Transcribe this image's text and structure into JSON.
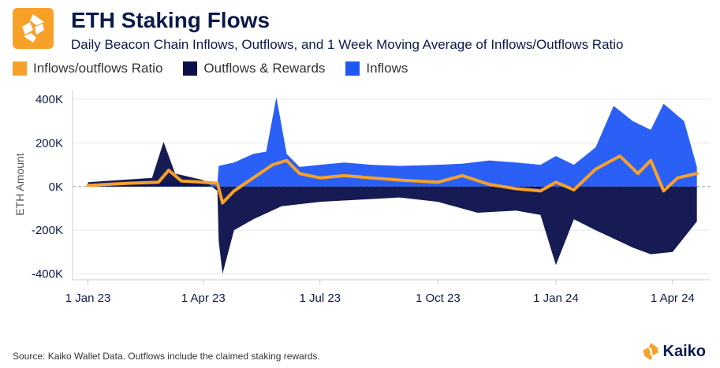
{
  "header": {
    "title": "ETH Staking Flows",
    "subtitle": "Daily Beacon Chain Inflows, Outflows, and 1 Week Moving Average of Inflows/Outflows Ratio"
  },
  "legend": [
    {
      "label": "Inflows/outflows Ratio",
      "color": "#f7a129"
    },
    {
      "label": "Outflows & Rewards",
      "color": "#0b0f4a"
    },
    {
      "label": "Inflows",
      "color": "#1f57f5"
    }
  ],
  "footer": {
    "source": "Source: Kaiko Wallet Data. Outflows include the claimed staking rewards.",
    "brand": "Kaiko"
  },
  "chart_data": {
    "type": "area",
    "title": "ETH Staking Flows",
    "ylabel": "ETH Amount",
    "xlabel": "",
    "ylim": [
      -420000,
      440000
    ],
    "xlim": [
      "2022-12-20",
      "2024-04-30"
    ],
    "y_ticks": [
      "400K",
      "200K",
      "0K",
      "-200K",
      "-400K"
    ],
    "y_tick_values": [
      400000,
      200000,
      0,
      -200000,
      -400000
    ],
    "x_ticks": [
      "1 Jan 23",
      "1 Apr 23",
      "1 Jul 23",
      "1 Oct 23",
      "1 Jan 24",
      "1 Apr 24"
    ],
    "x_tick_dates": [
      "2023-01-01",
      "2023-04-01",
      "2023-07-01",
      "2023-10-01",
      "2024-01-01",
      "2024-04-01"
    ],
    "grid": true,
    "legend_position": "top-left",
    "series": [
      {
        "name": "Inflows",
        "color": "#1f57f5",
        "points": [
          [
            "2023-01-01",
            5000
          ],
          [
            "2023-02-01",
            15000
          ],
          [
            "2023-03-01",
            22000
          ],
          [
            "2023-04-01",
            20000
          ],
          [
            "2023-04-12",
            15000
          ],
          [
            "2023-04-13",
            95000
          ],
          [
            "2023-04-25",
            110000
          ],
          [
            "2023-05-10",
            150000
          ],
          [
            "2023-05-20",
            160000
          ],
          [
            "2023-05-28",
            410000
          ],
          [
            "2023-06-05",
            150000
          ],
          [
            "2023-06-15",
            90000
          ],
          [
            "2023-07-01",
            100000
          ],
          [
            "2023-07-20",
            110000
          ],
          [
            "2023-08-10",
            100000
          ],
          [
            "2023-09-01",
            95000
          ],
          [
            "2023-10-01",
            100000
          ],
          [
            "2023-10-20",
            105000
          ],
          [
            "2023-11-10",
            120000
          ],
          [
            "2023-12-01",
            110000
          ],
          [
            "2023-12-20",
            100000
          ],
          [
            "2024-01-01",
            140000
          ],
          [
            "2024-01-15",
            100000
          ],
          [
            "2024-02-01",
            180000
          ],
          [
            "2024-02-15",
            370000
          ],
          [
            "2024-03-01",
            300000
          ],
          [
            "2024-03-15",
            260000
          ],
          [
            "2024-03-25",
            380000
          ],
          [
            "2024-04-10",
            300000
          ],
          [
            "2024-04-20",
            90000
          ]
        ]
      },
      {
        "name": "Outflows & Rewards",
        "color": "#0b0f4a",
        "points": [
          [
            "2023-01-01",
            20000
          ],
          [
            "2023-02-20",
            40000
          ],
          [
            "2023-03-01",
            205000
          ],
          [
            "2023-03-10",
            60000
          ],
          [
            "2023-04-01",
            30000
          ],
          [
            "2023-04-12",
            -20000
          ],
          [
            "2023-04-13",
            -250000
          ],
          [
            "2023-04-16",
            -400000
          ],
          [
            "2023-04-25",
            -200000
          ],
          [
            "2023-05-10",
            -150000
          ],
          [
            "2023-06-01",
            -90000
          ],
          [
            "2023-07-01",
            -70000
          ],
          [
            "2023-08-01",
            -60000
          ],
          [
            "2023-09-01",
            -50000
          ],
          [
            "2023-10-01",
            -70000
          ],
          [
            "2023-11-01",
            -120000
          ],
          [
            "2023-12-01",
            -110000
          ],
          [
            "2023-12-20",
            -130000
          ],
          [
            "2024-01-01",
            -360000
          ],
          [
            "2024-01-15",
            -150000
          ],
          [
            "2024-02-01",
            -200000
          ],
          [
            "2024-03-01",
            -280000
          ],
          [
            "2024-03-15",
            -310000
          ],
          [
            "2024-04-01",
            -300000
          ],
          [
            "2024-04-20",
            -160000
          ]
        ]
      },
      {
        "name": "Inflows/outflows Ratio",
        "color": "#f7a129",
        "points": [
          [
            "2023-01-01",
            5000
          ],
          [
            "2023-02-01",
            15000
          ],
          [
            "2023-02-25",
            20000
          ],
          [
            "2023-03-05",
            75000
          ],
          [
            "2023-03-15",
            25000
          ],
          [
            "2023-04-01",
            20000
          ],
          [
            "2023-04-12",
            15000
          ],
          [
            "2023-04-16",
            -75000
          ],
          [
            "2023-04-25",
            -20000
          ],
          [
            "2023-05-10",
            40000
          ],
          [
            "2023-05-25",
            100000
          ],
          [
            "2023-06-05",
            120000
          ],
          [
            "2023-06-15",
            60000
          ],
          [
            "2023-07-01",
            40000
          ],
          [
            "2023-07-20",
            50000
          ],
          [
            "2023-08-10",
            40000
          ],
          [
            "2023-09-01",
            30000
          ],
          [
            "2023-10-01",
            20000
          ],
          [
            "2023-10-20",
            50000
          ],
          [
            "2023-11-10",
            10000
          ],
          [
            "2023-12-01",
            -10000
          ],
          [
            "2023-12-20",
            -20000
          ],
          [
            "2024-01-01",
            20000
          ],
          [
            "2024-01-15",
            -15000
          ],
          [
            "2024-02-01",
            80000
          ],
          [
            "2024-02-20",
            140000
          ],
          [
            "2024-03-05",
            60000
          ],
          [
            "2024-03-15",
            120000
          ],
          [
            "2024-03-25",
            -20000
          ],
          [
            "2024-04-05",
            40000
          ],
          [
            "2024-04-20",
            60000
          ]
        ]
      }
    ]
  }
}
